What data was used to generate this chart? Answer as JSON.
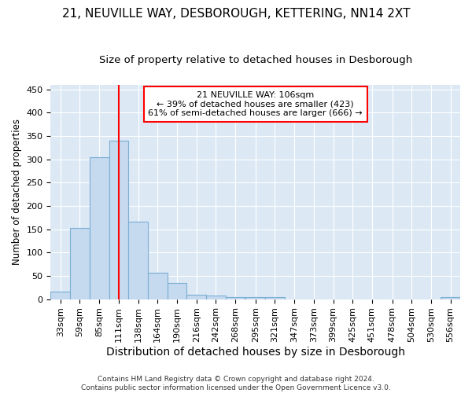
{
  "title_line1": "21, NEUVILLE WAY, DESBOROUGH, KETTERING, NN14 2XT",
  "title_line2": "Size of property relative to detached houses in Desborough",
  "xlabel": "Distribution of detached houses by size in Desborough",
  "ylabel": "Number of detached properties",
  "footnote": "Contains HM Land Registry data © Crown copyright and database right 2024.\nContains public sector information licensed under the Open Government Licence v3.0.",
  "bar_color": "#c5d9ef",
  "bar_edge_color": "#7bafd4",
  "background_color": "#dce9f5",
  "annotation_text": "21 NEUVILLE WAY: 106sqm\n← 39% of detached houses are smaller (423)\n61% of semi-detached houses are larger (666) →",
  "annotation_box_color": "white",
  "annotation_box_edge": "red",
  "vline_color": "red",
  "vline_x_index": 3,
  "categories": [
    "33sqm",
    "59sqm",
    "85sqm",
    "111sqm",
    "138sqm",
    "164sqm",
    "190sqm",
    "216sqm",
    "242sqm",
    "268sqm",
    "295sqm",
    "321sqm",
    "347sqm",
    "373sqm",
    "399sqm",
    "425sqm",
    "451sqm",
    "478sqm",
    "504sqm",
    "530sqm",
    "556sqm"
  ],
  "bin_starts": [
    20,
    46,
    72,
    98,
    124,
    150,
    176,
    202,
    228,
    254,
    281,
    307,
    333,
    359,
    385,
    411,
    437,
    464,
    490,
    516,
    542
  ],
  "bin_width": 26,
  "values": [
    17,
    153,
    305,
    340,
    166,
    57,
    34,
    10,
    7,
    5,
    4,
    4,
    0,
    0,
    0,
    0,
    0,
    0,
    0,
    0,
    4
  ],
  "ylim": [
    0,
    460
  ],
  "yticks": [
    0,
    50,
    100,
    150,
    200,
    250,
    300,
    350,
    400,
    450
  ],
  "title1_fontsize": 11,
  "title2_fontsize": 9.5,
  "xlabel_fontsize": 10,
  "ylabel_fontsize": 8.5,
  "tick_fontsize": 8,
  "footnote_fontsize": 6.5
}
